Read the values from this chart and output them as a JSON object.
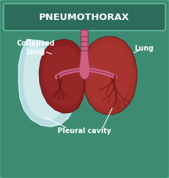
{
  "title": "PNEUMOTHORAX",
  "title_fontsize": 9.5,
  "title_color": "#FFFFFF",
  "title_bg_color": "#2d6b5a",
  "bg_color": "#3d8b72",
  "border_color": "#5ab090",
  "label_collapsed": "Collapsed\nLung",
  "label_lung": "Lung",
  "label_pleural": "Pleural cavity",
  "label_color": "#FFFFFF",
  "label_fontsize": 7,
  "lung_dark": "#8B2020",
  "lung_mid": "#A0302A",
  "lung_light": "#C04040",
  "trachea_color": "#D06080",
  "pleural_color_light": "#C8E8F0",
  "vessel_color": "#7A1A1A"
}
